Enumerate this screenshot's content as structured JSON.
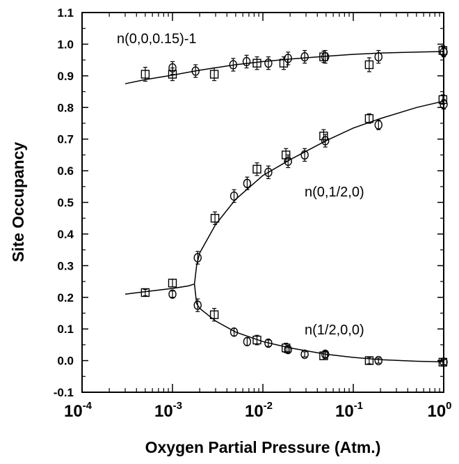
{
  "chart_data": {
    "type": "scatter",
    "title": "",
    "xlabel": "Oxygen Partial Pressure (Atm.)",
    "ylabel": "Site Occupancy",
    "x_scale": "log",
    "xlim": [
      0.0001,
      1
    ],
    "ylim": [
      -0.1,
      1.1
    ],
    "x_ticks": [
      {
        "value": 0.0001,
        "base": "10",
        "exp": "-4"
      },
      {
        "value": 0.001,
        "base": "10",
        "exp": "-3"
      },
      {
        "value": 0.01,
        "base": "10",
        "exp": "-2"
      },
      {
        "value": 0.1,
        "base": "10",
        "exp": "-1"
      },
      {
        "value": 1,
        "base": "10",
        "exp": "0"
      }
    ],
    "y_ticks": [
      "-0.1",
      "0.0",
      "0.1",
      "0.2",
      "0.3",
      "0.4",
      "0.5",
      "0.6",
      "0.7",
      "0.8",
      "0.9",
      "1.0",
      "1.1"
    ],
    "grid": false,
    "annotations": [
      {
        "text": "n(0,0,0.15)-1",
        "x": 0.00032,
        "y": 0.99
      },
      {
        "text": "n(0,1/2,0)",
        "x": 0.05,
        "y": 0.55
      },
      {
        "text": "n(1/2,0,0)",
        "x": 0.05,
        "y": 0.115
      }
    ],
    "markers": {
      "square": "square",
      "circle": "circle"
    },
    "series": [
      {
        "marker": "square",
        "points": [
          [
            0.0005,
            0.905
          ],
          [
            0.001,
            0.905
          ],
          [
            0.0029,
            0.905
          ],
          [
            0.0086,
            0.94
          ],
          [
            0.017,
            0.94
          ],
          [
            0.047,
            0.96
          ],
          [
            0.15,
            0.935
          ],
          [
            0.98,
            0.98
          ],
          [
            0.00295,
            0.45
          ],
          [
            0.0086,
            0.605
          ],
          [
            0.018,
            0.65
          ],
          [
            0.047,
            0.71
          ],
          [
            0.15,
            0.765
          ],
          [
            0.98,
            0.825
          ],
          [
            0.0005,
            0.215
          ],
          [
            0.001,
            0.245
          ],
          [
            0.0029,
            0.145
          ],
          [
            0.0086,
            0.065
          ],
          [
            0.018,
            0.04
          ],
          [
            0.047,
            0.015
          ],
          [
            0.15,
            0.0
          ],
          [
            0.98,
            -0.005
          ]
        ],
        "errors": [
          0.022,
          0.02,
          0.02,
          0.02,
          0.02,
          0.018,
          0.022,
          0.015,
          0.02,
          0.02,
          0.02,
          0.02,
          0.015,
          0.015,
          0.01,
          0.012,
          0.02,
          0.015,
          0.015,
          0.012,
          0.01,
          0.008
        ]
      },
      {
        "marker": "circle",
        "points": [
          [
            0.001,
            0.925
          ],
          [
            0.0018,
            0.915
          ],
          [
            0.0047,
            0.935
          ],
          [
            0.0066,
            0.945
          ],
          [
            0.0115,
            0.94
          ],
          [
            0.019,
            0.955
          ],
          [
            0.029,
            0.96
          ],
          [
            0.049,
            0.96
          ],
          [
            0.19,
            0.96
          ],
          [
            1.0,
            0.975
          ],
          [
            0.0019,
            0.325
          ],
          [
            0.0048,
            0.52
          ],
          [
            0.0067,
            0.56
          ],
          [
            0.0115,
            0.595
          ],
          [
            0.019,
            0.63
          ],
          [
            0.029,
            0.65
          ],
          [
            0.049,
            0.695
          ],
          [
            0.19,
            0.745
          ],
          [
            1.0,
            0.81
          ],
          [
            0.001,
            0.21
          ],
          [
            0.0019,
            0.175
          ],
          [
            0.0048,
            0.09
          ],
          [
            0.0067,
            0.06
          ],
          [
            0.0115,
            0.055
          ],
          [
            0.019,
            0.035
          ],
          [
            0.029,
            0.02
          ],
          [
            0.049,
            0.02
          ],
          [
            0.19,
            0.0
          ],
          [
            1.0,
            -0.005
          ]
        ],
        "errors": [
          0.02,
          0.02,
          0.02,
          0.02,
          0.02,
          0.02,
          0.02,
          0.02,
          0.02,
          0.015,
          0.02,
          0.02,
          0.02,
          0.02,
          0.02,
          0.02,
          0.02,
          0.015,
          0.015,
          0.01,
          0.02,
          0.012,
          0.012,
          0.01,
          0.01,
          0.008,
          0.01,
          0.008,
          0.008
        ]
      }
    ],
    "fit_curves": [
      {
        "points": [
          [
            0.0003,
            0.875
          ],
          [
            0.0005,
            0.888
          ],
          [
            0.001,
            0.902
          ],
          [
            0.002,
            0.918
          ],
          [
            0.005,
            0.935
          ],
          [
            0.01,
            0.945
          ],
          [
            0.02,
            0.953
          ],
          [
            0.05,
            0.962
          ],
          [
            0.1,
            0.968
          ],
          [
            0.2,
            0.972
          ],
          [
            0.5,
            0.975
          ],
          [
            1.0,
            0.977
          ]
        ]
      },
      {
        "points": [
          [
            0.0003,
            0.21
          ],
          [
            0.0005,
            0.218
          ],
          [
            0.001,
            0.228
          ],
          [
            0.0015,
            0.236
          ],
          [
            0.00175,
            0.242
          ]
        ]
      },
      {
        "points": [
          [
            0.00175,
            0.242
          ],
          [
            0.00185,
            0.3
          ],
          [
            0.002,
            0.34
          ],
          [
            0.003,
            0.43
          ],
          [
            0.005,
            0.51
          ],
          [
            0.01,
            0.585
          ],
          [
            0.02,
            0.635
          ],
          [
            0.05,
            0.695
          ],
          [
            0.1,
            0.735
          ],
          [
            0.2,
            0.765
          ],
          [
            0.5,
            0.8
          ],
          [
            1.0,
            0.82
          ]
        ]
      },
      {
        "points": [
          [
            0.00175,
            0.242
          ],
          [
            0.00185,
            0.18
          ],
          [
            0.002,
            0.165
          ],
          [
            0.003,
            0.125
          ],
          [
            0.005,
            0.09
          ],
          [
            0.01,
            0.06
          ],
          [
            0.02,
            0.04
          ],
          [
            0.05,
            0.02
          ],
          [
            0.1,
            0.01
          ],
          [
            0.2,
            0.003
          ],
          [
            0.5,
            -0.002
          ],
          [
            1.0,
            -0.004
          ]
        ]
      }
    ]
  }
}
